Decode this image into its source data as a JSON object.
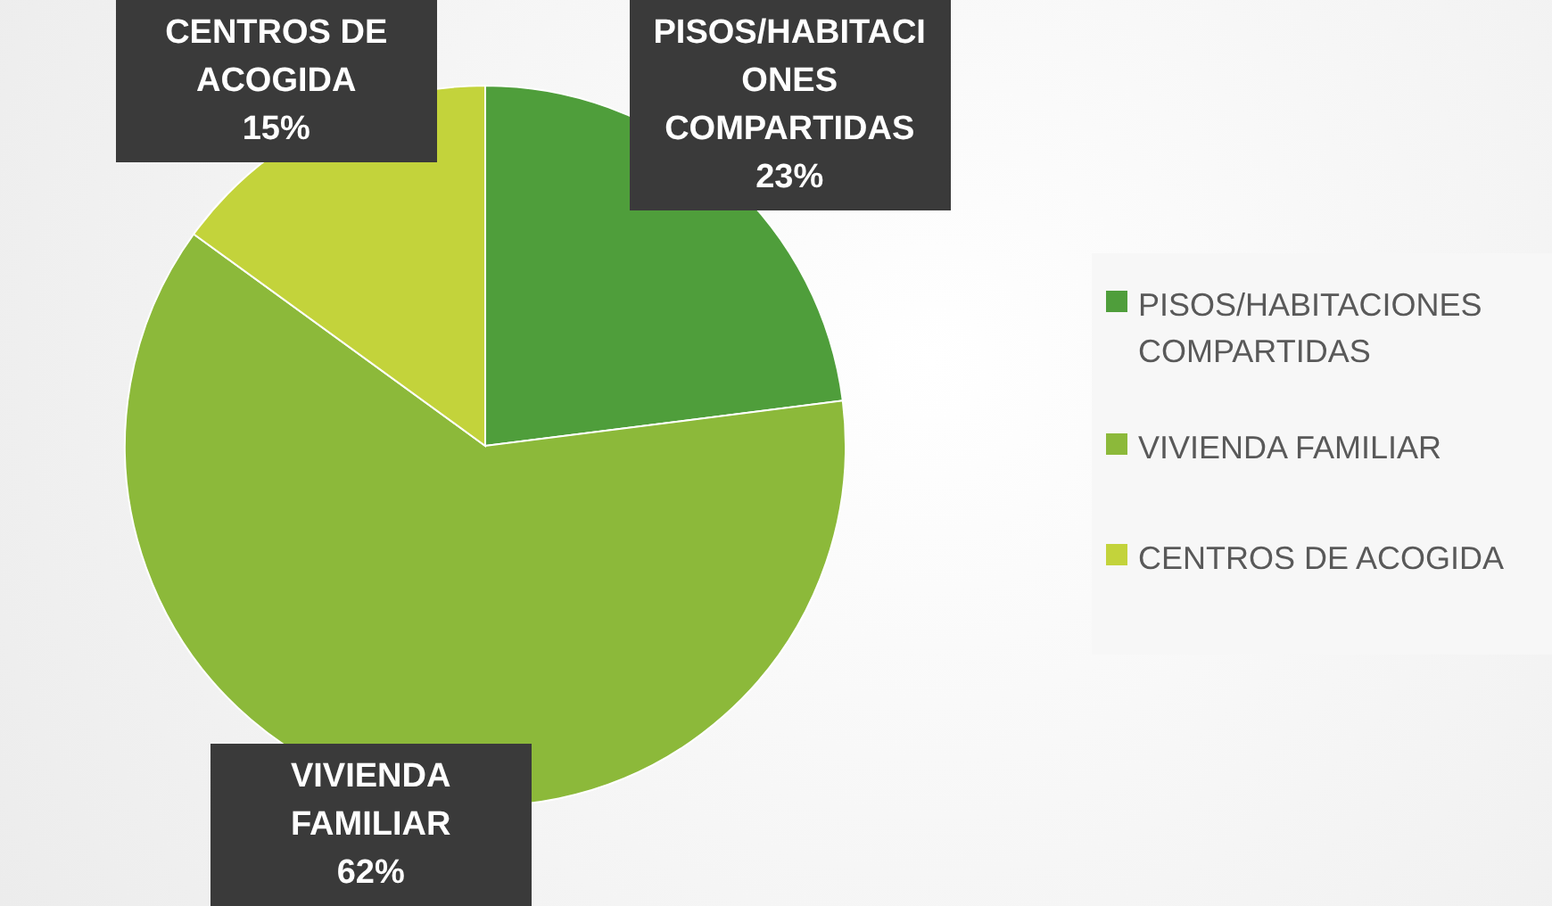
{
  "chart_data": {
    "type": "pie",
    "categories": [
      "PISOS/HABITACIONES COMPARTIDAS",
      "VIVIENDA FAMILIAR",
      "CENTROS DE ACOGIDA"
    ],
    "values": [
      23,
      62,
      15
    ],
    "colors": [
      "#4f9e3b",
      "#8cb93a",
      "#c3d33b"
    ],
    "value_labels": [
      "23%",
      "62%",
      "15%"
    ],
    "legend": "right"
  }
}
